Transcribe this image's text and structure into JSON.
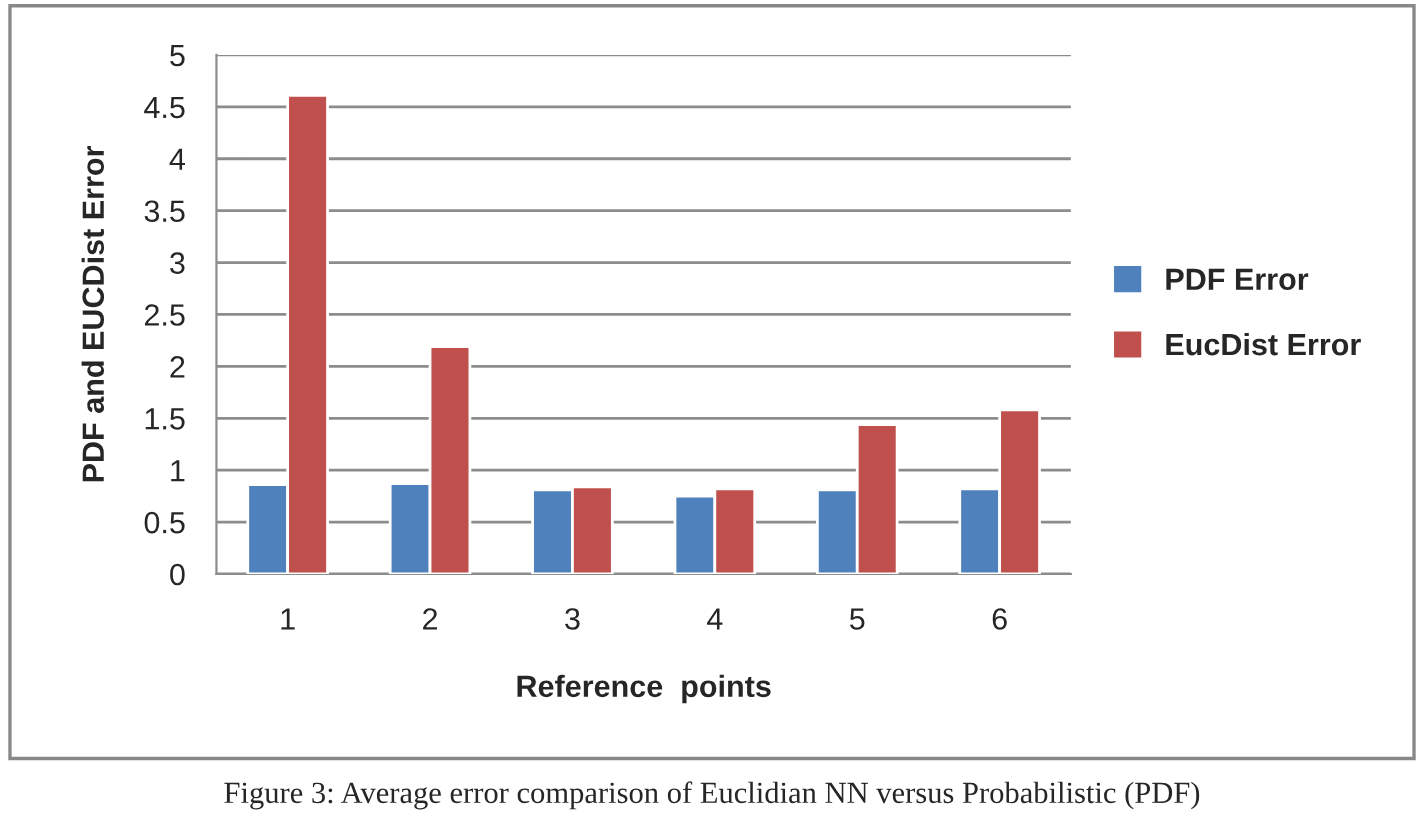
{
  "chart_data": {
    "type": "bar",
    "xlabel": "Reference  points",
    "ylabel": "PDF and EUCDist Error",
    "categories": [
      "1",
      "2",
      "3",
      "4",
      "5",
      "6"
    ],
    "series": [
      {
        "name": "PDF Error",
        "color": "#4f81bd",
        "values": [
          0.86,
          0.87,
          0.81,
          0.75,
          0.81,
          0.82
        ]
      },
      {
        "name": "EucDist Error",
        "color": "#c0504d",
        "values": [
          4.61,
          2.19,
          0.84,
          0.82,
          1.44,
          1.58
        ]
      }
    ],
    "ylim": [
      0,
      5
    ],
    "yticks": [
      0,
      0.5,
      1,
      1.5,
      2,
      2.5,
      3,
      3.5,
      4,
      4.5,
      5
    ],
    "grid": "y",
    "legend": "right",
    "annotations": [
      "Figure 3: Average error comparison of Euclidian NN versus Probabilistic (PDF)"
    ]
  }
}
